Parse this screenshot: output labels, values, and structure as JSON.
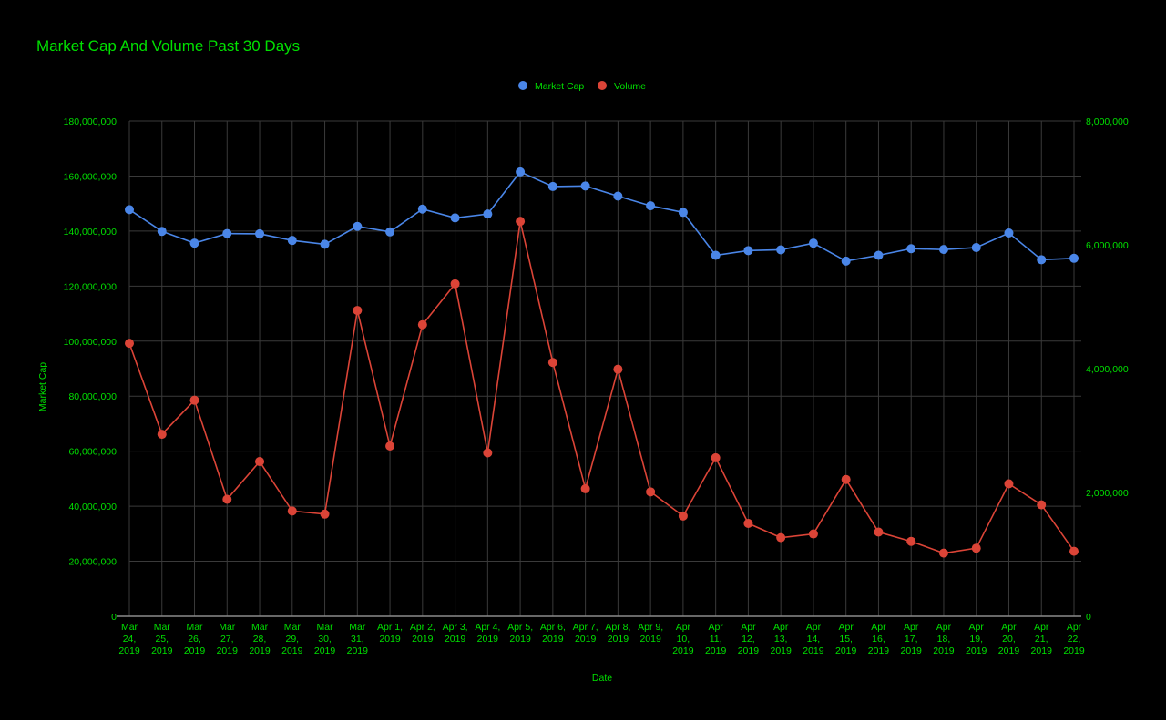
{
  "chart_data": {
    "type": "line",
    "title": "Market Cap And Volume Past 30 Days",
    "xlabel": "Date",
    "ylabel_left": "Market Cap",
    "ylabel_right": "",
    "grid": true,
    "legend_position": "top-center",
    "text_color": "#00e000",
    "categories": [
      [
        "Mar",
        "24,",
        "2019"
      ],
      [
        "Mar",
        "25,",
        "2019"
      ],
      [
        "Mar",
        "26,",
        "2019"
      ],
      [
        "Mar",
        "27,",
        "2019"
      ],
      [
        "Mar",
        "28,",
        "2019"
      ],
      [
        "Mar",
        "29,",
        "2019"
      ],
      [
        "Mar",
        "30,",
        "2019"
      ],
      [
        "Mar",
        "31,",
        "2019"
      ],
      [
        "Apr 1,",
        "2019"
      ],
      [
        "Apr 2,",
        "2019"
      ],
      [
        "Apr 3,",
        "2019"
      ],
      [
        "Apr 4,",
        "2019"
      ],
      [
        "Apr 5,",
        "2019"
      ],
      [
        "Apr 6,",
        "2019"
      ],
      [
        "Apr 7,",
        "2019"
      ],
      [
        "Apr 8,",
        "2019"
      ],
      [
        "Apr 9,",
        "2019"
      ],
      [
        "Apr",
        "10,",
        "2019"
      ],
      [
        "Apr",
        "11,",
        "2019"
      ],
      [
        "Apr",
        "12,",
        "2019"
      ],
      [
        "Apr",
        "13,",
        "2019"
      ],
      [
        "Apr",
        "14,",
        "2019"
      ],
      [
        "Apr",
        "15,",
        "2019"
      ],
      [
        "Apr",
        "16,",
        "2019"
      ],
      [
        "Apr",
        "17,",
        "2019"
      ],
      [
        "Apr",
        "18,",
        "2019"
      ],
      [
        "Apr",
        "19,",
        "2019"
      ],
      [
        "Apr",
        "20,",
        "2019"
      ],
      [
        "Apr",
        "21,",
        "2019"
      ],
      [
        "Apr",
        "22,",
        "2019"
      ]
    ],
    "y_left": {
      "min": 0,
      "max": 180000000,
      "ticks": [
        0,
        20000000,
        40000000,
        60000000,
        80000000,
        100000000,
        120000000,
        140000000,
        160000000,
        180000000
      ],
      "tick_labels": [
        "0",
        "20,000,000",
        "40,000,000",
        "60,000,000",
        "80,000,000",
        "100,000,000",
        "120,000,000",
        "140,000,000",
        "160,000,000",
        "180,000,000"
      ]
    },
    "y_right": {
      "min": 0,
      "max": 8000000,
      "ticks": [
        0,
        2000000,
        4000000,
        6000000,
        8000000
      ],
      "tick_labels": [
        "0",
        "2,000,000",
        "4,000,000",
        "6,000,000",
        "8,000,000"
      ]
    },
    "series": [
      {
        "name": "Market Cap",
        "axis": "left",
        "color": "#4a86e8",
        "values": [
          147800000,
          139900000,
          135600000,
          139100000,
          139000000,
          136600000,
          135200000,
          141700000,
          139700000,
          148000000,
          144800000,
          146200000,
          161500000,
          156200000,
          156400000,
          152700000,
          149200000,
          146800000,
          131200000,
          132900000,
          133200000,
          135600000,
          129100000,
          131200000,
          133600000,
          133300000,
          134000000,
          139300000,
          129600000,
          130100000
        ]
      },
      {
        "name": "Volume",
        "axis": "right",
        "color": "#db4437",
        "values": [
          4410000,
          2940000,
          3490000,
          1890000,
          2500000,
          1700000,
          1650000,
          4940000,
          2750000,
          4710000,
          5370000,
          2640000,
          6380000,
          4100000,
          2060000,
          3990000,
          2010000,
          1620000,
          2560000,
          1500000,
          1270000,
          1330000,
          2210000,
          1360000,
          1210000,
          1020000,
          1100000,
          2140000,
          1800000,
          1050000
        ]
      }
    ]
  }
}
